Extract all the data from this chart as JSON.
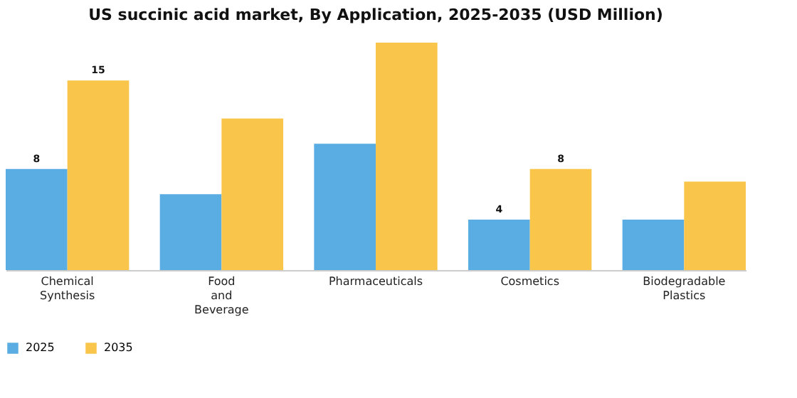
{
  "chart_data": {
    "type": "bar",
    "title": "US succinic acid market, By Application, 2025-2035 (USD Million)",
    "categories": [
      "Chemical Synthesis",
      "Food and Beverage",
      "Pharmaceuticals",
      "Cosmetics",
      "Biodegradable Plastics"
    ],
    "series": [
      {
        "name": "2025",
        "color": "#5aade3",
        "values": [
          8,
          6,
          10,
          4,
          4
        ],
        "value_labels": [
          "8",
          null,
          null,
          "4",
          null
        ]
      },
      {
        "name": "2035",
        "color": "#f9c54a",
        "values": [
          15,
          12,
          18,
          8,
          7
        ],
        "value_labels": [
          "15",
          null,
          null,
          "8",
          null
        ]
      }
    ],
    "legend": "bottom"
  }
}
